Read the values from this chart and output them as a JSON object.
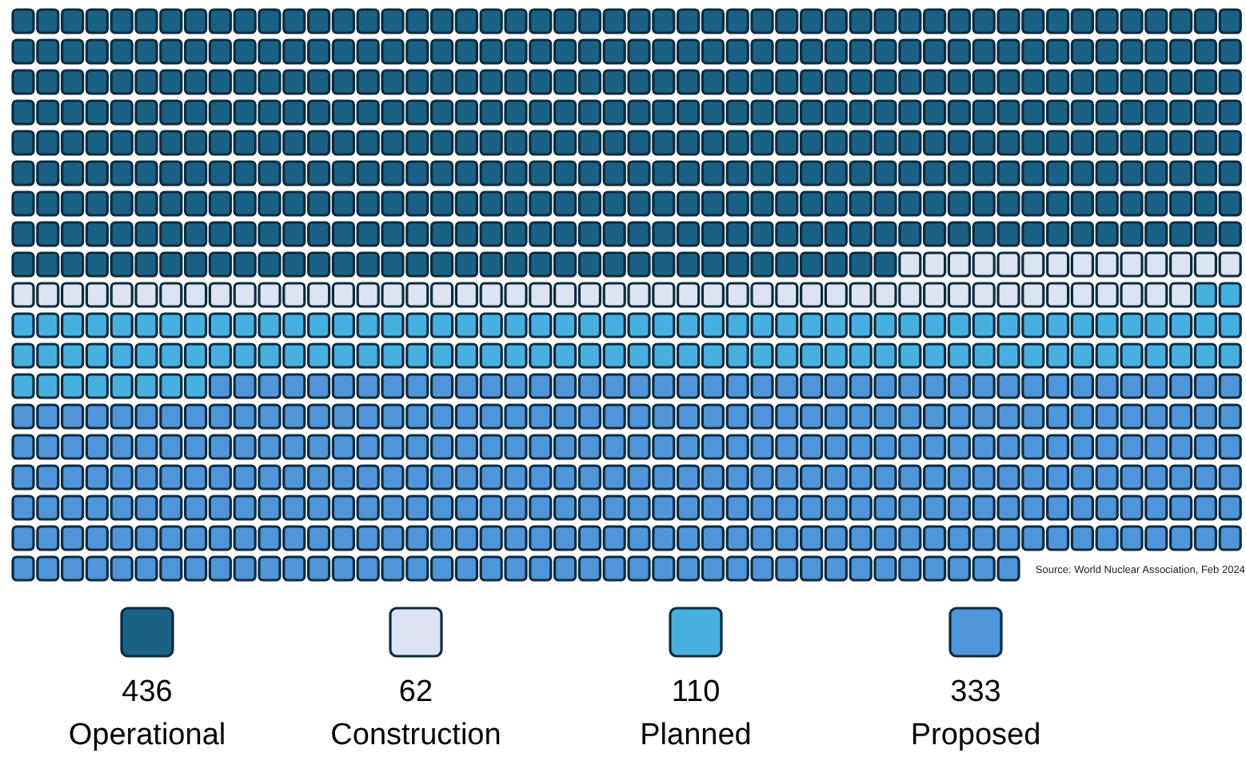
{
  "chart_data": {
    "type": "other",
    "categories": [
      "Operational",
      "Construction",
      "Planned",
      "Proposed"
    ],
    "values": [
      436,
      62,
      110,
      333
    ],
    "colors": [
      "#1a6285",
      "#dce3f3",
      "#46b1e1",
      "#4e95d9"
    ],
    "data_labels": true,
    "annotations": [
      "Source: World Nuclear Association, Feb 2024"
    ]
  }
}
